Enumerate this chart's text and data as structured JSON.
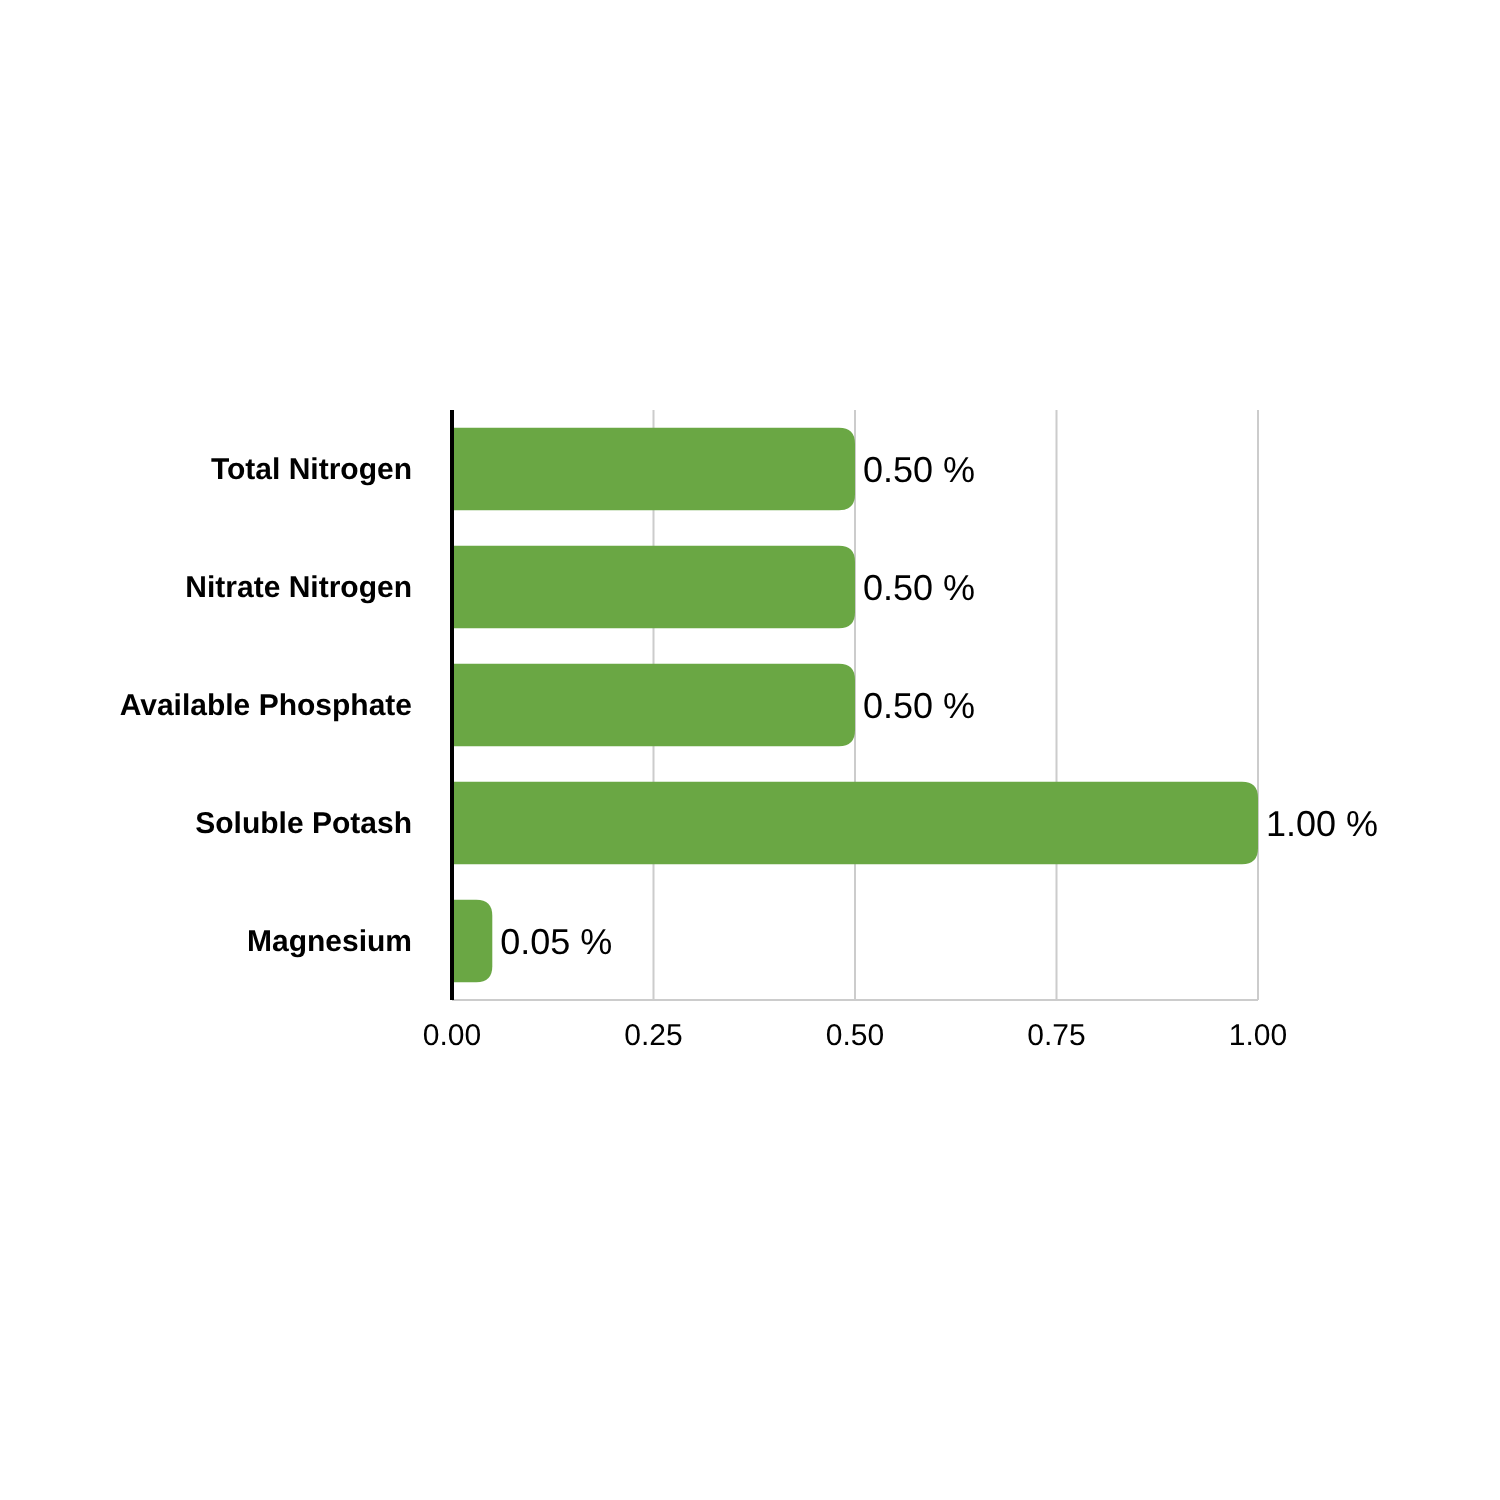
{
  "chart_data": {
    "type": "bar",
    "orientation": "horizontal",
    "categories": [
      "Total Nitrogen",
      "Nitrate Nitrogen",
      "Available Phosphate",
      "Soluble Potash",
      "Magnesium"
    ],
    "values": [
      0.5,
      0.5,
      0.5,
      1.0,
      0.05
    ],
    "value_labels": [
      "0.50 %",
      "0.50 %",
      "0.50 %",
      "1.00 %",
      "0.05 %"
    ],
    "color": "#6aa744",
    "xlim": [
      0,
      1
    ],
    "xticks": [
      {
        "value": 0,
        "label": "0.00"
      },
      {
        "value": 0.25,
        "label": "0.25"
      },
      {
        "value": 0.5,
        "label": "0.50"
      },
      {
        "value": 0.75,
        "label": "0.75"
      },
      {
        "value": 1,
        "label": "1.00"
      }
    ],
    "grid": "x"
  }
}
